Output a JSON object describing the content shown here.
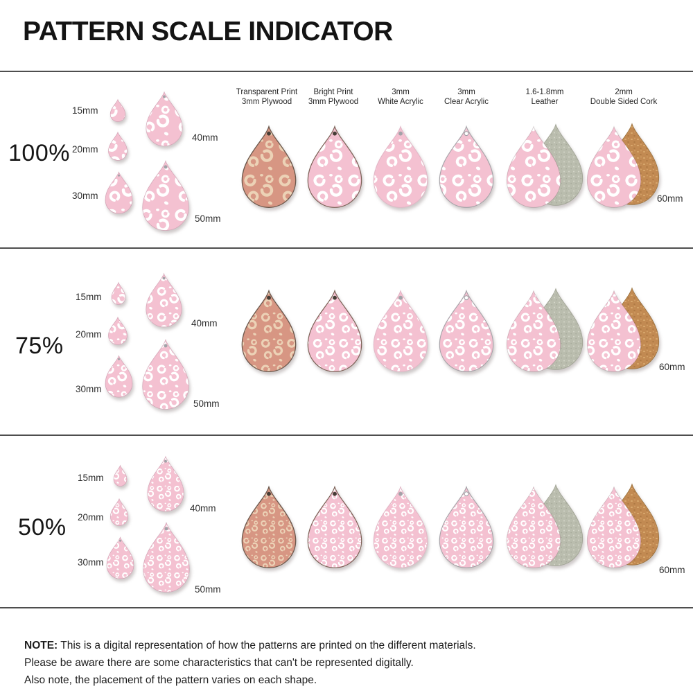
{
  "title": "PATTERN SCALE INDICATOR",
  "columns": [
    {
      "label_line1": "Transparent Print",
      "label_line2": "3mm Plywood"
    },
    {
      "label_line1": "Bright Print",
      "label_line2": "3mm Plywood"
    },
    {
      "label_line1": "3mm",
      "label_line2": "White Acrylic"
    },
    {
      "label_line1": "3mm",
      "label_line2": "Clear Acrylic"
    },
    {
      "label_line1": "1.6-1.8mm",
      "label_line2": "Leather"
    },
    {
      "label_line1": "2mm",
      "label_line2": "Double Sided Cork"
    }
  ],
  "rows": [
    {
      "scale_label": "100%",
      "sizes": [
        "15mm",
        "20mm",
        "30mm",
        "40mm",
        "50mm"
      ],
      "large_size_label": "60mm"
    },
    {
      "scale_label": "75%",
      "sizes": [
        "15mm",
        "20mm",
        "30mm",
        "40mm",
        "50mm"
      ],
      "large_size_label": "60mm"
    },
    {
      "scale_label": "50%",
      "sizes": [
        "15mm",
        "20mm",
        "30mm",
        "40mm",
        "50mm"
      ],
      "large_size_label": "60mm"
    }
  ],
  "note": {
    "prefix": "NOTE:",
    "line1": "This is a digital representation of how the patterns are printed on the different materials.",
    "line2": "Please be aware there are some characteristics that can't be represented digitally.",
    "line3": "Also note, the placement of the pattern varies on each shape."
  },
  "colors": {
    "pink_base": "#f4c1d1",
    "pattern_spot_white": "#ffffff",
    "wood_base": "#d79683",
    "wood_spot": "#ecd2b6",
    "plywood_edge": "#6b584c",
    "hole_dark": "#463d36",
    "suede_base": "#babdae",
    "suede_speckle_light": "#d4d6c9",
    "suede_speckle_dark": "#a8ab9c",
    "cork_base": "#c28a52",
    "cork_speckle_light": "#d9a96e",
    "cork_speckle_dark": "#aa7540",
    "divider": "#4e4e4e"
  }
}
